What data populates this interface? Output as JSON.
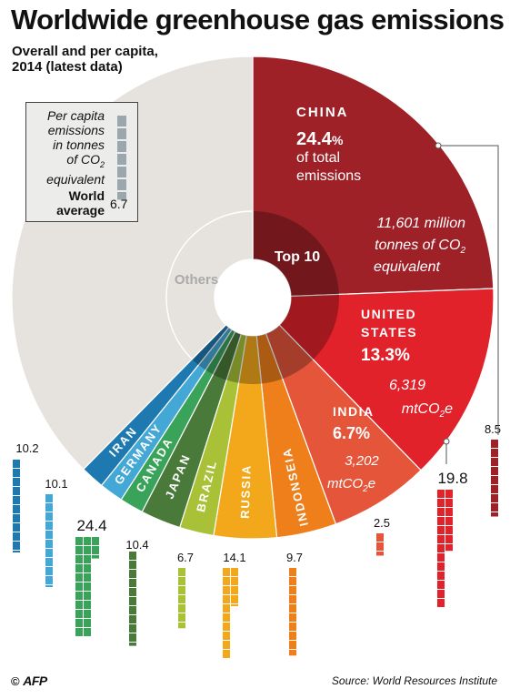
{
  "header": {
    "title": "Worldwide greenhouse gas emissions",
    "subtitle_line1": "Overall and per capita,",
    "subtitle_line2": "2014 (latest data)"
  },
  "legend": {
    "line1": "Per capita",
    "line2": "emissions",
    "line3": "in tonnes",
    "line4": "of CO",
    "line4_sub": "2",
    "line5": "equivalent",
    "avg_label_line1": "World",
    "avg_label_line2": "average",
    "avg_value": "6.7",
    "color": "#9aa7ad"
  },
  "center": {
    "top10_label": "Top 10",
    "others_label": "Others"
  },
  "callouts": {
    "china": {
      "name": "CHINA",
      "share": "24.4",
      "share_unit": "%",
      "line2": "of total",
      "line3": "emissions",
      "detail_line1": "11,601 million",
      "detail_line2": "tonnes of CO",
      "detail_line2_sub": "2",
      "detail_line3": "equivalent"
    },
    "us": {
      "name_line1": "UNITED",
      "name_line2": "STATES",
      "share": "13.3%",
      "detail_line1": "6,319",
      "detail_line2": "mtCO",
      "detail_line2_sub": "2",
      "detail_line2_end": "e"
    },
    "india": {
      "name": "INDIA",
      "share": "6.7%",
      "detail_line1": "3,202",
      "detail_line2": "mtCO",
      "detail_line2_sub": "2",
      "detail_line2_end": "e"
    }
  },
  "footer": {
    "copyright": "©",
    "logo": "AFP",
    "source": "Source: World Resources Institute"
  },
  "chart_data": {
    "type": "pie",
    "description_unit": "share of total emissions (%)",
    "slices": [
      {
        "name": "CHINA",
        "share": 24.4,
        "per_capita": 8.5,
        "color": "#9e2128"
      },
      {
        "name": "UNITED STATES",
        "share": 13.3,
        "per_capita": 19.8,
        "color": "#e1222b"
      },
      {
        "name": "INDIA",
        "share": 6.7,
        "per_capita": 2.5,
        "color": "#e4553a"
      },
      {
        "name": "INDONSEIA",
        "share": 4.0,
        "per_capita": 9.7,
        "color": "#ef7f1a"
      },
      {
        "name": "RUSSIA",
        "share": 4.2,
        "per_capita": 14.1,
        "color": "#f3a81c"
      },
      {
        "name": "BRAZIL",
        "share": 2.3,
        "per_capita": 6.7,
        "color": "#a8c136"
      },
      {
        "name": "JAPAN",
        "share": 2.7,
        "per_capita": 10.4,
        "color": "#4a7a3a"
      },
      {
        "name": "CANADA",
        "share": 1.6,
        "per_capita": 24.4,
        "color": "#3aa35a"
      },
      {
        "name": "GERMANY",
        "share": 1.6,
        "per_capita": 10.1,
        "color": "#44a8d6"
      },
      {
        "name": "IRAN",
        "share": 1.6,
        "per_capita": 10.2,
        "color": "#1e79b0"
      },
      {
        "name": "Others",
        "share": 37.6,
        "color": "#e6e3de"
      }
    ],
    "world_average_per_capita": 6.7
  }
}
